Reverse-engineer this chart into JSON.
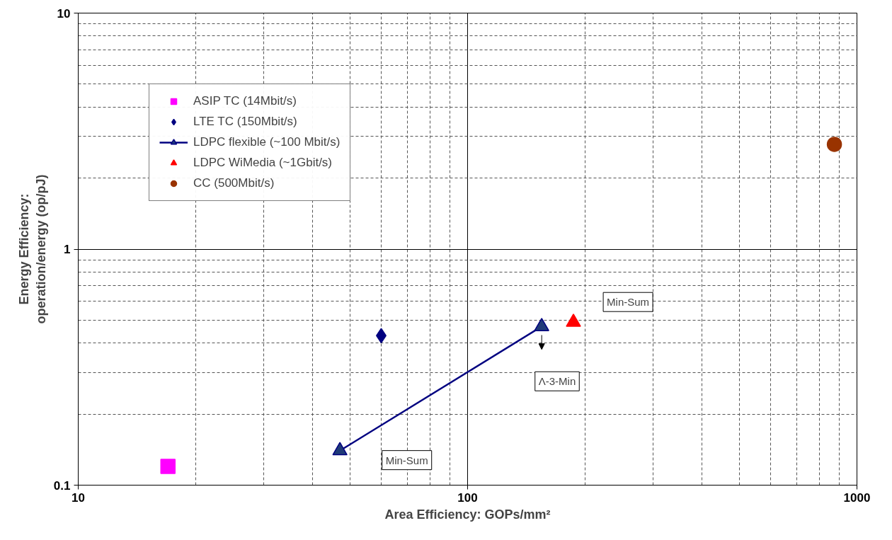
{
  "chart_data": {
    "type": "scatter",
    "xlabel": "Area Efficiency: GOPs/mm²",
    "ylabel": "Energy Efficiency:\noperation/energy (op/pJ)",
    "log": "xy",
    "xlim": [
      10,
      1000
    ],
    "ylim": [
      0.1,
      10
    ],
    "xticks": [
      10,
      100,
      1000
    ],
    "yticks": [
      0.1,
      1,
      10
    ],
    "grid": true,
    "legend": "top left",
    "series": [
      {
        "name": "ASIP TC (14Mbit/s)",
        "marker": "square",
        "color": "#ff00ff",
        "x": [
          17
        ],
        "values": [
          0.12
        ]
      },
      {
        "name": "LTE TC (150Mbit/s)",
        "marker": "diamond",
        "color": "#000080",
        "x": [
          60
        ],
        "values": [
          0.43
        ]
      },
      {
        "name": "LDPC flexible (~100 Mbit/s)",
        "type": "line",
        "marker": "triangle",
        "color": "#000080",
        "x": [
          47,
          155
        ],
        "values": [
          0.14,
          0.47
        ]
      },
      {
        "name": "LDPC WiMedia (~1Gbit/s)",
        "marker": "triangle",
        "color": "#ff0000",
        "x": [
          187
        ],
        "values": [
          0.49
        ]
      },
      {
        "name": "CC (500Mbit/s)",
        "marker": "circle",
        "color": "#993300",
        "x": [
          875
        ],
        "values": [
          2.78
        ]
      }
    ],
    "annotations": [
      "Min-Sum",
      "Min-Sum",
      "Λ-3-Min"
    ]
  }
}
